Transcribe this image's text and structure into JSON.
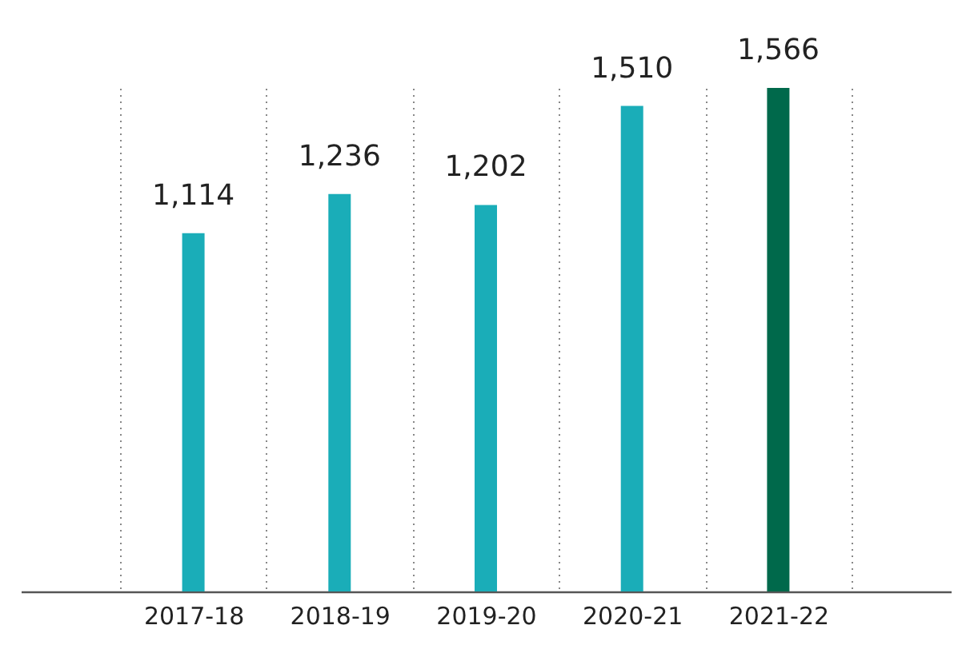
{
  "chart_data": {
    "type": "bar",
    "categories": [
      "2017-18",
      "2018-19",
      "2019-20",
      "2020-21",
      "2021-22"
    ],
    "values": [
      1114,
      1236,
      1202,
      1510,
      1566
    ],
    "colors": [
      "#1aadb8",
      "#1aadb8",
      "#1aadb8",
      "#1aadb8",
      "#00694b"
    ],
    "value_labels": [
      "1,114",
      "1,236",
      "1,202",
      "1,510",
      "1,566"
    ],
    "grid": "x"
  }
}
